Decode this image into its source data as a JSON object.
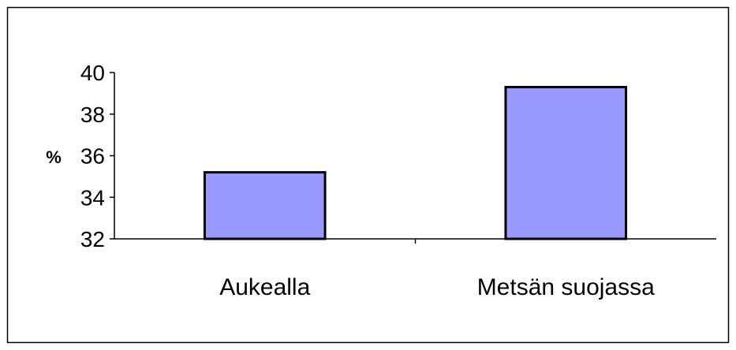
{
  "chart_data": {
    "type": "bar",
    "title": "",
    "xlabel": "",
    "ylabel": "%",
    "categories": [
      "Aukealla",
      "Metsän suojassa"
    ],
    "values": [
      35.2,
      39.3
    ],
    "ylim": [
      32,
      40
    ],
    "yticks": [
      32,
      34,
      36,
      38,
      40
    ],
    "grid": false,
    "colors": {
      "bar_fill": "#9999FF",
      "bar_stroke": "#000000",
      "axis": "#000000",
      "frame": "#000000"
    }
  }
}
